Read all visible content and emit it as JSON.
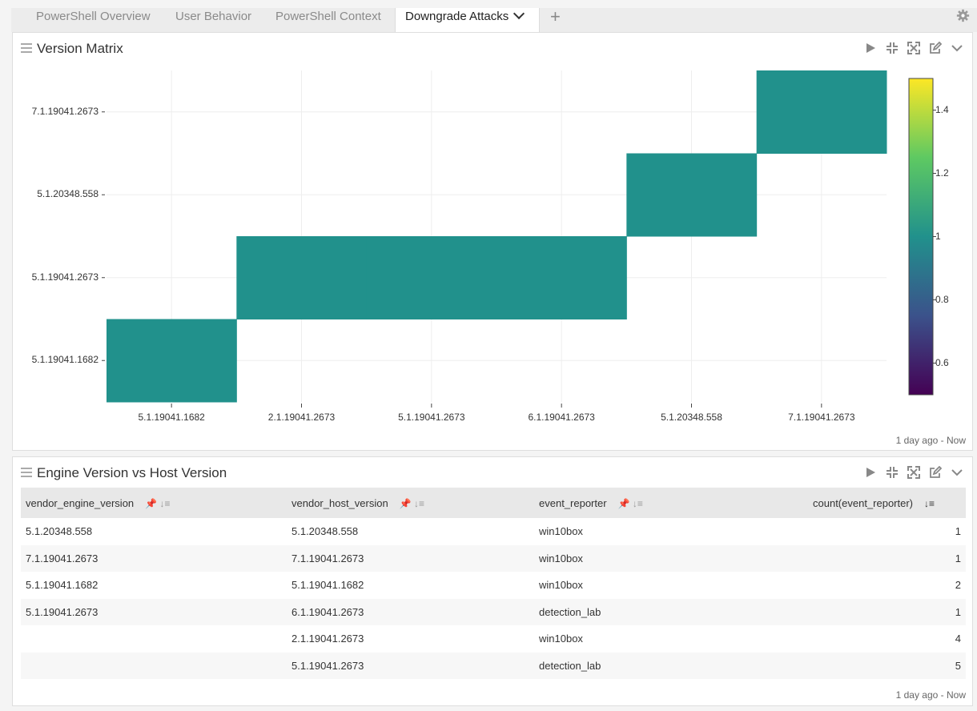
{
  "tabs": [
    {
      "label": "PowerShell Overview"
    },
    {
      "label": "User Behavior"
    },
    {
      "label": "PowerShell Context"
    },
    {
      "label": "Downgrade Attacks"
    }
  ],
  "add_tab_label": "+",
  "colors": {
    "accent_cell": "#21918c"
  },
  "panel1": {
    "title": "Version Matrix",
    "footer": "1 day ago - Now",
    "chart_data": {
      "type": "heatmap",
      "x_categories": [
        "5.1.19041.1682",
        "2.1.19041.2673",
        "5.1.19041.2673",
        "6.1.19041.2673",
        "5.1.20348.558",
        "7.1.19041.2673"
      ],
      "y_categories": [
        "5.1.19041.1682",
        "5.1.19041.2673",
        "5.1.20348.558",
        "7.1.19041.2673"
      ],
      "cells": [
        {
          "x": "5.1.19041.1682",
          "y": "5.1.19041.1682",
          "value": 1
        },
        {
          "x": "2.1.19041.2673",
          "y": "5.1.19041.2673",
          "value": 1
        },
        {
          "x": "5.1.19041.2673",
          "y": "5.1.19041.2673",
          "value": 1
        },
        {
          "x": "6.1.19041.2673",
          "y": "5.1.19041.2673",
          "value": 1
        },
        {
          "x": "5.1.20348.558",
          "y": "5.1.20348.558",
          "value": 1
        },
        {
          "x": "7.1.19041.2673",
          "y": "7.1.19041.2673",
          "value": 1
        }
      ],
      "colorscale": "viridis",
      "colorbar_range": [
        0.5,
        1.5
      ],
      "colorbar_ticks": [
        "1.4",
        "1.2",
        "1",
        "0.8",
        "0.6"
      ],
      "grid": true
    }
  },
  "panel2": {
    "title": "Engine Version vs Host Version",
    "footer": "1 day ago - Now",
    "columns": [
      "vendor_engine_version",
      "vendor_host_version",
      "event_reporter",
      "count(event_reporter)"
    ],
    "rows": [
      [
        "5.1.20348.558",
        "5.1.20348.558",
        "win10box",
        "1"
      ],
      [
        "7.1.19041.2673",
        "7.1.19041.2673",
        "win10box",
        "1"
      ],
      [
        "5.1.19041.1682",
        "5.1.19041.1682",
        "win10box",
        "2"
      ],
      [
        "5.1.19041.2673",
        "6.1.19041.2673",
        "detection_lab",
        "1"
      ],
      [
        "",
        "2.1.19041.2673",
        "win10box",
        "4"
      ],
      [
        "",
        "5.1.19041.2673",
        "detection_lab",
        "5"
      ]
    ]
  }
}
